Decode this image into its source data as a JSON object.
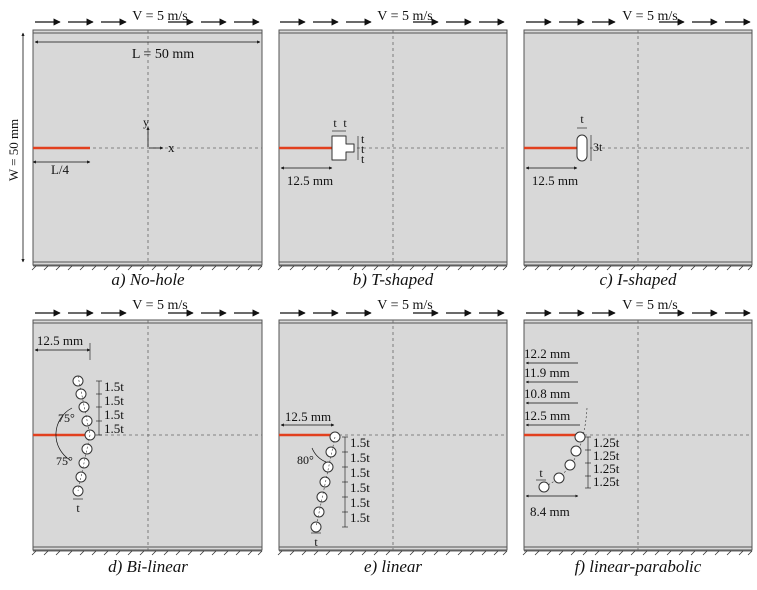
{
  "velocity_label": "V = 5 m/s",
  "panels": [
    {
      "caption": "a) No-hole"
    },
    {
      "caption": "b) T-shaped"
    },
    {
      "caption": "c) I-shaped"
    },
    {
      "caption": "d) Bi-linear"
    },
    {
      "caption": "e) linear"
    },
    {
      "caption": "f) linear-parabolic"
    }
  ],
  "panel_a": {
    "length_label": "L = 50 mm",
    "width_label": "W = 50 mm",
    "crack_label": "L/4",
    "x_axis": "x",
    "y_axis": "y"
  },
  "panel_b": {
    "t1": "t",
    "t2": "t",
    "tr1": "t",
    "tr2": "t",
    "tr3": "t",
    "dist": "12.5 mm"
  },
  "panel_c": {
    "t_top": "t",
    "t_side": "3t",
    "dist": "12.5 mm"
  },
  "panel_d": {
    "dist": "12.5 mm",
    "spacing": [
      "1.5t",
      "1.5t",
      "1.5t",
      "1.5t"
    ],
    "angle_top": "75°",
    "angle_bottom": "75°",
    "t": "t"
  },
  "panel_e": {
    "dist": "12.5 mm",
    "angle": "80°",
    "spacing": [
      "1.5t",
      "1.5t",
      "1.5t",
      "1.5t",
      "1.5t",
      "1.5t"
    ],
    "t": "t"
  },
  "panel_f": {
    "dims": [
      "12.2 mm",
      "11.9 mm",
      "10.8 mm",
      "12.5 mm"
    ],
    "spacing": [
      "1.25t",
      "1.25t",
      "1.25t",
      "1.25t"
    ],
    "t": "t",
    "bottom_dist": "8.4 mm"
  },
  "colors": {
    "plate": "#d8d8d8",
    "crack": "#e2401e",
    "border": "#555555"
  }
}
